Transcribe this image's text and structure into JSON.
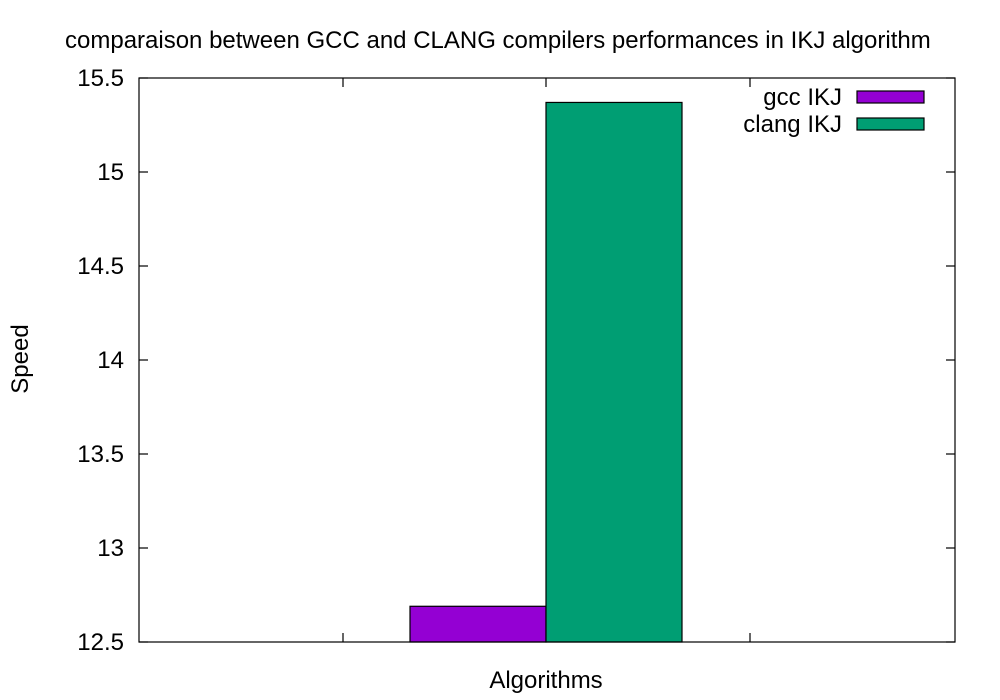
{
  "chart_data": {
    "type": "bar",
    "title": "comparaison between GCC and CLANG compilers performances in IKJ algorithm",
    "xlabel": "Algorithms",
    "ylabel": "Speed",
    "ylim": [
      12.5,
      15.5
    ],
    "yticks": [
      "12.5",
      "13",
      "13.5",
      "14",
      "14.5",
      "15",
      "15.5"
    ],
    "categories": [
      ""
    ],
    "series": [
      {
        "name": "gcc IKJ",
        "values": [
          12.69
        ],
        "color": "#9400d3"
      },
      {
        "name": "clang IKJ",
        "values": [
          15.37
        ],
        "color": "#009e73"
      }
    ],
    "grid": false,
    "legend_position": "top-right"
  }
}
